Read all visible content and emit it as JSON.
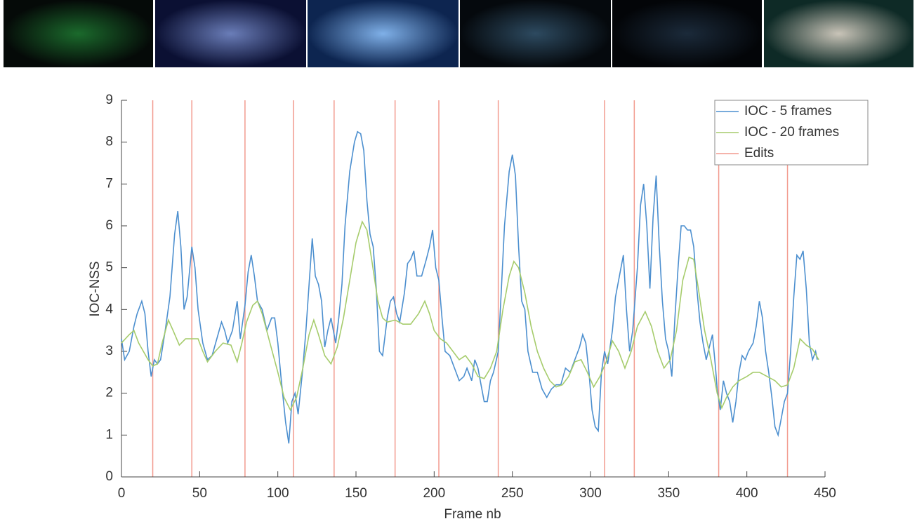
{
  "chart_data": {
    "type": "line",
    "xlabel": "Frame nb",
    "ylabel": "IOC-NSS",
    "xlim": [
      0,
      450
    ],
    "ylim": [
      0,
      9
    ],
    "xticks": [
      0,
      50,
      100,
      150,
      200,
      250,
      300,
      350,
      400,
      450
    ],
    "yticks": [
      0,
      1,
      2,
      3,
      4,
      5,
      6,
      7,
      8,
      9
    ],
    "legend": "upper right",
    "series": [
      {
        "name": "IOC - 5 frames",
        "color": "#4c8fcf",
        "x": [
          0,
          2,
          5,
          8,
          10,
          13,
          15,
          17,
          19,
          21,
          23,
          25,
          28,
          31,
          34,
          36,
          38,
          40,
          42,
          45,
          47,
          49,
          52,
          55,
          58,
          61,
          64,
          66,
          68,
          71,
          74,
          76,
          79,
          81,
          83,
          85,
          87,
          90,
          93,
          96,
          98,
          100,
          102,
          105,
          107,
          109,
          111,
          113,
          116,
          118,
          120,
          122,
          124,
          126,
          128,
          130,
          132,
          134,
          137,
          139,
          141,
          143,
          146,
          149,
          151,
          153,
          155,
          157,
          159,
          161,
          163,
          165,
          167,
          170,
          172,
          174,
          176,
          178,
          181,
          183,
          185,
          187,
          189,
          192,
          195,
          197,
          199,
          201,
          203,
          205,
          207,
          210,
          213,
          216,
          219,
          221,
          224,
          226,
          228,
          230,
          232,
          234,
          236,
          238,
          241,
          243,
          245,
          248,
          250,
          252,
          254,
          256,
          258,
          260,
          263,
          266,
          269,
          272,
          275,
          278,
          281,
          284,
          287,
          290,
          293,
          295,
          297,
          299,
          301,
          303,
          305,
          307,
          309,
          311,
          314,
          316,
          319,
          321,
          323,
          325,
          327,
          330,
          332,
          334,
          336,
          338,
          340,
          342,
          344,
          346,
          348,
          350,
          352,
          354,
          356,
          358,
          360,
          362,
          364,
          366,
          368,
          370,
          372,
          374,
          376,
          378,
          380,
          381,
          383,
          385,
          387,
          389,
          391,
          393,
          395,
          397,
          399,
          401,
          404,
          406,
          408,
          410,
          412,
          414,
          416,
          418,
          420,
          422,
          424,
          426,
          428,
          430,
          432,
          434,
          436,
          438,
          440,
          442,
          444,
          445
        ],
        "values": [
          3.3,
          2.8,
          3.0,
          3.6,
          3.9,
          4.2,
          3.9,
          3.0,
          2.4,
          2.8,
          2.7,
          2.8,
          3.5,
          4.3,
          5.8,
          6.35,
          5.5,
          4.0,
          4.3,
          5.5,
          5.0,
          4.0,
          3.2,
          2.8,
          2.9,
          3.3,
          3.7,
          3.5,
          3.2,
          3.5,
          4.2,
          3.3,
          4.1,
          4.9,
          5.3,
          4.8,
          4.2,
          4.0,
          3.5,
          3.8,
          3.8,
          3.2,
          2.4,
          1.3,
          0.8,
          1.8,
          2.0,
          1.5,
          2.6,
          3.5,
          4.6,
          5.7,
          4.8,
          4.6,
          4.2,
          3.1,
          3.5,
          3.8,
          3.2,
          3.8,
          4.6,
          6.0,
          7.3,
          8.0,
          8.25,
          8.2,
          7.8,
          6.6,
          5.8,
          5.5,
          4.5,
          3.0,
          2.9,
          3.8,
          4.2,
          4.3,
          3.9,
          3.7,
          4.4,
          5.1,
          5.2,
          5.4,
          4.8,
          4.8,
          5.2,
          5.5,
          5.9,
          5.0,
          4.7,
          3.8,
          3.0,
          2.9,
          2.6,
          2.3,
          2.4,
          2.6,
          2.3,
          2.8,
          2.6,
          2.2,
          1.8,
          1.8,
          2.3,
          2.5,
          3.0,
          4.5,
          6.0,
          7.3,
          7.7,
          7.2,
          5.5,
          4.2,
          4.0,
          3.0,
          2.5,
          2.5,
          2.1,
          1.9,
          2.1,
          2.2,
          2.2,
          2.6,
          2.5,
          2.8,
          3.1,
          3.4,
          3.2,
          2.5,
          1.6,
          1.2,
          1.1,
          2.5,
          3.0,
          2.7,
          3.5,
          4.3,
          4.9,
          5.3,
          4.0,
          3.0,
          3.5,
          5.0,
          6.5,
          7.0,
          6.0,
          4.5,
          6.2,
          7.2,
          5.5,
          4.2,
          3.3,
          3.0,
          2.4,
          3.8,
          5.0,
          6.0,
          6.0,
          5.9,
          5.9,
          5.5,
          4.5,
          3.7,
          3.2,
          2.8,
          3.1,
          3.4,
          2.6,
          2.1,
          1.6,
          2.3,
          2.0,
          1.8,
          1.3,
          1.8,
          2.5,
          2.9,
          2.8,
          3.0,
          3.2,
          3.6,
          4.2,
          3.8,
          3.0,
          2.5,
          1.9,
          1.2,
          1.0,
          1.4,
          1.8,
          2.0,
          3.0,
          4.3,
          5.3,
          5.2,
          5.4,
          4.5,
          3.2,
          2.8,
          3.0,
          2.8
        ]
      },
      {
        "name": "IOC - 20 frames",
        "color": "#a6cc6c",
        "x": [
          0,
          5,
          8,
          11,
          14,
          17,
          20,
          23,
          26,
          30,
          33,
          37,
          41,
          45,
          49,
          52,
          55,
          60,
          65,
          70,
          74,
          77,
          80,
          84,
          87,
          90,
          95,
          100,
          104,
          108,
          112,
          116,
          120,
          123,
          126,
          130,
          134,
          138,
          142,
          146,
          150,
          154,
          157,
          160,
          164,
          167,
          170,
          175,
          180,
          185,
          190,
          194,
          197,
          200,
          204,
          208,
          212,
          216,
          220,
          224,
          228,
          232,
          236,
          240,
          244,
          248,
          251,
          254,
          258,
          262,
          266,
          270,
          274,
          278,
          282,
          286,
          290,
          294,
          298,
          302,
          306,
          310,
          314,
          318,
          322,
          326,
          330,
          335,
          339,
          343,
          347,
          351,
          355,
          359,
          363,
          366,
          369,
          373,
          377,
          381,
          384,
          387,
          391,
          395,
          400,
          404,
          408,
          413,
          418,
          422,
          426,
          430,
          434,
          438,
          442,
          446
        ],
        "values": [
          3.2,
          3.4,
          3.5,
          3.2,
          3.0,
          2.8,
          2.65,
          2.7,
          3.2,
          3.75,
          3.5,
          3.15,
          3.3,
          3.3,
          3.3,
          3.0,
          2.75,
          3.0,
          3.2,
          3.15,
          2.75,
          3.2,
          3.7,
          4.1,
          4.2,
          3.9,
          3.2,
          2.5,
          1.9,
          1.6,
          1.9,
          2.6,
          3.4,
          3.75,
          3.4,
          2.9,
          2.7,
          3.1,
          3.8,
          4.7,
          5.6,
          6.1,
          5.9,
          5.2,
          4.2,
          3.8,
          3.7,
          3.75,
          3.65,
          3.65,
          3.9,
          4.2,
          3.9,
          3.5,
          3.3,
          3.2,
          3.0,
          2.8,
          2.9,
          2.7,
          2.4,
          2.35,
          2.6,
          3.0,
          4.0,
          4.8,
          5.15,
          5.0,
          4.4,
          3.6,
          3.0,
          2.6,
          2.3,
          2.15,
          2.2,
          2.4,
          2.75,
          2.8,
          2.5,
          2.15,
          2.4,
          2.75,
          3.25,
          3.0,
          2.6,
          3.0,
          3.6,
          3.95,
          3.6,
          3.0,
          2.6,
          2.8,
          3.5,
          4.7,
          5.25,
          5.2,
          4.5,
          3.5,
          2.8,
          2.0,
          1.65,
          1.9,
          2.15,
          2.3,
          2.4,
          2.5,
          2.5,
          2.4,
          2.3,
          2.15,
          2.2,
          2.6,
          3.3,
          3.15,
          3.05,
          2.8
        ]
      }
    ],
    "vlines": {
      "name": "Edits",
      "color": "#f29a8e",
      "x": [
        20,
        45,
        79,
        110,
        136,
        175,
        203,
        241,
        309,
        328,
        382,
        426
      ]
    }
  }
}
